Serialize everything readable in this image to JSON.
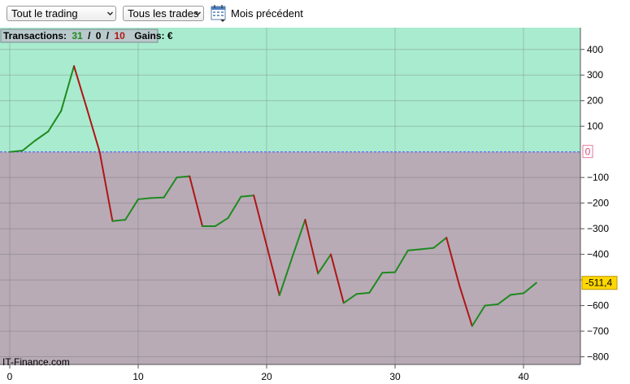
{
  "toolbar": {
    "scope_select": {
      "value": "Tout le trading"
    },
    "trades_select": {
      "value": "Tous les trades"
    },
    "calendar_icon": "calendar-icon",
    "period_label": "Mois précédent"
  },
  "header": {
    "transactions_label": "Transactions:",
    "wins": "31",
    "sep1": "/",
    "neutral": "0",
    "sep2": "/",
    "losses": "10",
    "gains_label": "Gains: €"
  },
  "watermark": "IT-Finance.com",
  "colors": {
    "positive_zone": "#a9ebcf",
    "negative_zone": "#b8abb6",
    "up_segment": "#1f8a1f",
    "down_segment": "#b01515",
    "zero_line": "#4a4aff",
    "last_value_badge": "#ffd700"
  },
  "chart_data": {
    "type": "line",
    "title": "",
    "xlabel": "",
    "ylabel": "",
    "x_ticks": [
      "0",
      "10",
      "20",
      "30",
      "40"
    ],
    "y_ticks": [
      "400",
      "300",
      "200",
      "100",
      "0",
      "−100",
      "−200",
      "−300",
      "−400",
      "−500",
      "−600",
      "−700",
      "−800"
    ],
    "xlim": [
      0,
      44
    ],
    "ylim": [
      -830,
      485
    ],
    "zero_label": "0",
    "last_value_label": "-511,4",
    "series": [
      {
        "x": [
          0,
          1,
          2,
          3,
          4,
          5,
          6,
          7,
          8,
          9,
          10,
          11,
          12,
          13,
          14,
          15,
          16,
          17,
          18,
          19,
          20,
          21,
          22,
          23,
          24,
          25,
          26,
          27,
          28,
          29,
          30,
          31,
          32,
          33,
          34,
          35,
          36,
          37,
          38,
          39,
          40,
          41
        ],
        "y": [
          0,
          5,
          45,
          80,
          160,
          335,
          170,
          0,
          -270,
          -265,
          -185,
          -180,
          -178,
          -100,
          -95,
          -290,
          -290,
          -258,
          -175,
          -170,
          -365,
          -560,
          -410,
          -265,
          -475,
          -400,
          -590,
          -555,
          -550,
          -472,
          -470,
          -385,
          -380,
          -375,
          -335,
          -520,
          -680,
          -600,
          -595,
          -558,
          -552,
          -511.4
        ]
      }
    ],
    "grid": true
  }
}
